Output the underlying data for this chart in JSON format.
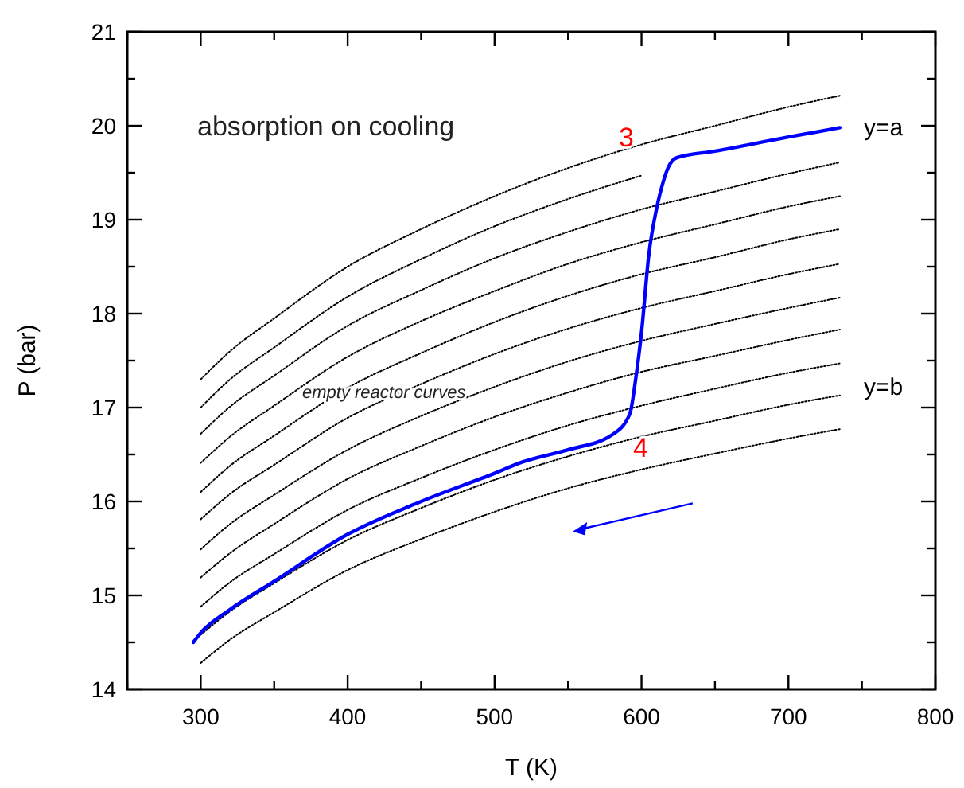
{
  "chart_data": {
    "type": "line",
    "xlabel": "T (K)",
    "ylabel": "P (bar)",
    "x": [
      300,
      320,
      350,
      400,
      450,
      500,
      550,
      600,
      650,
      700,
      735
    ],
    "xlim": [
      250,
      800
    ],
    "ylim": [
      14,
      21
    ],
    "xticks": [
      {
        "value": 250,
        "label": null
      },
      300,
      {
        "value": 350,
        "label": null
      },
      400,
      {
        "value": 450,
        "label": null
      },
      500,
      {
        "value": 550,
        "label": null
      },
      600,
      {
        "value": 650,
        "label": null
      },
      700,
      {
        "value": 750,
        "label": null
      },
      800
    ],
    "yticks": [
      14,
      {
        "value": 14.5,
        "label": null
      },
      15,
      {
        "value": 15.5,
        "label": null
      },
      16,
      {
        "value": 16.5,
        "label": null
      },
      17,
      {
        "value": 17.5,
        "label": null
      },
      18,
      {
        "value": 18.5,
        "label": null
      },
      19,
      {
        "value": 19.5,
        "label": null
      },
      20,
      {
        "value": 20.5,
        "label": null
      },
      21
    ],
    "grid": false,
    "marker": "none",
    "series": [
      {
        "color": "#000000",
        "line_style": "dotted",
        "values": [
          17.3,
          17.6,
          17.95,
          18.5,
          18.9,
          19.25,
          19.55,
          19.8,
          20.0,
          20.2,
          20.32
        ]
      },
      {
        "color": "#000000",
        "line_style": "dotted",
        "values": [
          17.0,
          17.3,
          17.64,
          18.18,
          18.58,
          18.93,
          19.22,
          19.47,
          null,
          null,
          null
        ]
      },
      {
        "color": "#000000",
        "line_style": "dotted",
        "values": [
          16.72,
          17.01,
          17.34,
          17.87,
          18.25,
          18.59,
          18.87,
          19.11,
          19.3,
          19.49,
          19.61
        ]
      },
      {
        "color": "#000000",
        "line_style": "dotted",
        "values": [
          16.41,
          16.69,
          17.02,
          17.54,
          17.92,
          18.24,
          18.53,
          18.76,
          18.95,
          19.14,
          19.25
        ]
      },
      {
        "color": "#000000",
        "line_style": "dotted",
        "values": [
          16.1,
          16.38,
          16.7,
          17.21,
          17.58,
          17.91,
          18.19,
          18.42,
          18.6,
          18.79,
          18.9
        ]
      },
      {
        "color": "#000000",
        "line_style": "dotted",
        "values": [
          15.81,
          16.08,
          16.39,
          16.89,
          17.25,
          17.57,
          17.84,
          18.06,
          18.24,
          18.42,
          18.53
        ]
      },
      {
        "color": "#000000",
        "line_style": "dotted",
        "values": [
          15.49,
          15.76,
          16.07,
          16.55,
          16.91,
          17.22,
          17.49,
          17.71,
          17.89,
          18.06,
          18.17
        ]
      },
      {
        "color": "#000000",
        "line_style": "dotted",
        "values": [
          15.19,
          15.45,
          15.76,
          16.24,
          16.59,
          16.9,
          17.16,
          17.38,
          17.55,
          17.72,
          17.83
        ]
      },
      {
        "color": "#000000",
        "line_style": "dotted",
        "values": [
          14.88,
          15.14,
          15.44,
          15.91,
          16.25,
          16.55,
          16.81,
          17.02,
          17.2,
          17.37,
          17.47
        ]
      },
      {
        "color": "#000000",
        "line_style": "dotted",
        "values": [
          14.58,
          14.83,
          15.13,
          15.59,
          15.93,
          16.23,
          16.48,
          16.69,
          16.86,
          17.03,
          17.13
        ]
      },
      {
        "color": "#000000",
        "line_style": "dotted",
        "values": [
          14.28,
          14.53,
          14.82,
          15.27,
          15.6,
          15.89,
          16.14,
          16.34,
          16.51,
          16.67,
          16.77
        ]
      },
      {
        "color": "#0000ff",
        "line_style": "solid",
        "x": [
          295,
          300,
          320,
          350,
          400,
          450,
          500,
          519,
          550,
          580,
          592,
          596,
          600,
          605,
          610,
          614,
          618,
          624,
          650,
          700,
          735
        ],
        "values": [
          14.5,
          14.6,
          14.85,
          15.15,
          15.65,
          16.0,
          16.3,
          16.42,
          16.55,
          16.71,
          16.93,
          17.3,
          17.8,
          18.63,
          19.1,
          19.36,
          19.55,
          19.66,
          19.73,
          19.88,
          19.98
        ]
      }
    ],
    "annotations": [
      "absorption on cooling",
      "empty reactor curves",
      "3",
      "4",
      "y=a",
      "y=b"
    ]
  }
}
